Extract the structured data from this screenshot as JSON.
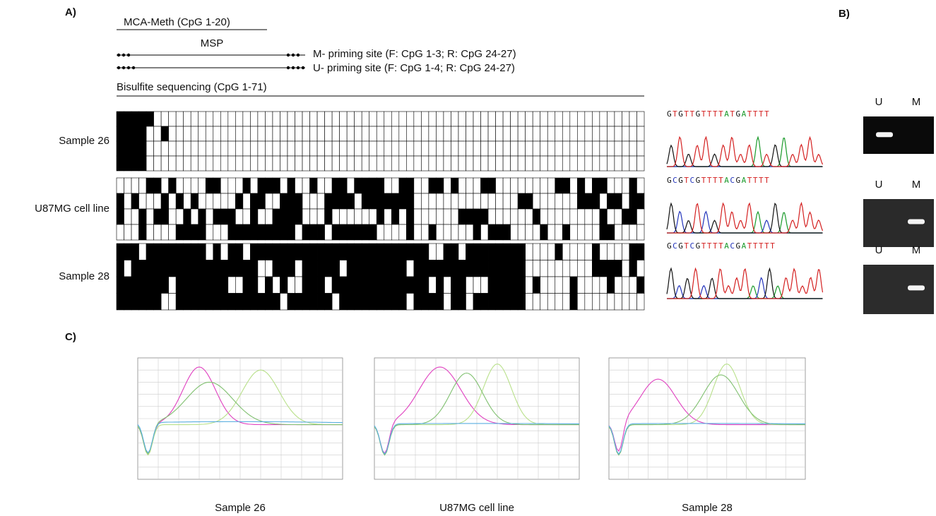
{
  "panel_labels": {
    "a": "A)",
    "b": "B)",
    "c": "C)"
  },
  "schematic": {
    "mca_meth": "MCA-Meth (CpG 1-20)",
    "msp": "MSP",
    "m_priming": "M- priming site (F: CpG 1-3; R: CpG 24-27)",
    "u_priming": "U- priming site (F: CpG 1-4; R: CpG 24-27)",
    "bisulfite": "Bisulfite sequencing (CpG 1-71)"
  },
  "samples": [
    {
      "label": "Sample 26",
      "sequence": "GTGTTGTTTTATGATTTT",
      "gel": [
        "U",
        "M"
      ]
    },
    {
      "label": "U87MG cell line",
      "sequence": "GCGTCGTTTTACGATTTT",
      "gel": [
        "U",
        "M"
      ]
    },
    {
      "label": "Sample 28",
      "sequence": "GCGTCGTTTTACGATTTTT",
      "gel": [
        "U",
        "M"
      ]
    }
  ],
  "melt_curves": [
    {
      "label": "Sample 26"
    },
    {
      "label": "U87MG cell line"
    },
    {
      "label": "Sample 28"
    }
  ]
}
